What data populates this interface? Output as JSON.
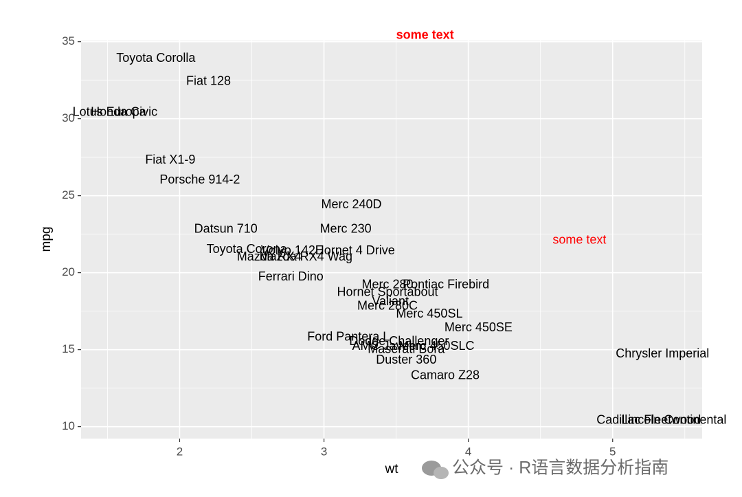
{
  "chart_data": {
    "type": "text-scatter",
    "x_label": "wt",
    "y_label": "mpg",
    "xlim": [
      1.317,
      5.62
    ],
    "ylim": [
      9.225,
      35.075
    ],
    "xticks": [
      2,
      3,
      4,
      5
    ],
    "yticks": [
      10,
      15,
      20,
      25,
      30,
      35
    ],
    "grid": true,
    "labels": [
      "Mazda RX4",
      "Mazda RX4 Wag",
      "Datsun 710",
      "Hornet 4 Drive",
      "Hornet Sportabout",
      "Valiant",
      "Duster 360",
      "Merc 240D",
      "Merc 230",
      "Merc 280",
      "Merc 280C",
      "Merc 450SE",
      "Merc 450SL",
      "Merc 450SLC",
      "Cadillac Fleetwood",
      "Lincoln Continental",
      "Chrysler Imperial",
      "Fiat 128",
      "Honda Civic",
      "Toyota Corolla",
      "Toyota Corona",
      "Dodge Challenger",
      "AMC Javelin",
      "Camaro Z28",
      "Pontiac Firebird",
      "Fiat X1-9",
      "Porsche 914-2",
      "Lotus Europa",
      "Ford Pantera L",
      "Ferrari Dino",
      "Maserati Bora",
      "Volvo 142E"
    ],
    "x": [
      2.62,
      2.875,
      2.32,
      3.215,
      3.44,
      3.46,
      3.57,
      3.19,
      3.15,
      3.44,
      3.44,
      4.07,
      3.73,
      3.78,
      5.25,
      5.424,
      5.345,
      2.2,
      1.615,
      1.835,
      2.465,
      3.52,
      3.435,
      3.84,
      3.845,
      1.935,
      2.14,
      1.513,
      3.17,
      2.77,
      3.57,
      2.78
    ],
    "values": [
      21,
      21,
      22.8,
      21.4,
      18.7,
      18.1,
      14.3,
      24.4,
      22.8,
      19.2,
      17.8,
      16.4,
      17.3,
      15.2,
      10.4,
      10.4,
      14.7,
      32.4,
      30.4,
      33.9,
      21.5,
      15.5,
      15.2,
      13.3,
      19.2,
      27.3,
      26,
      30.4,
      15.8,
      19.7,
      15,
      21.4
    ],
    "color": "#000000",
    "annotations": [
      {
        "text": "some text",
        "x": 4.77,
        "y": 22.1,
        "color": "#ff0000",
        "bold": false
      },
      {
        "text": "some text",
        "x": 3.7,
        "y": 35.4,
        "color": "#ff0000",
        "bold": true
      }
    ]
  },
  "watermark": "公众号 · R语言数据分析指南"
}
